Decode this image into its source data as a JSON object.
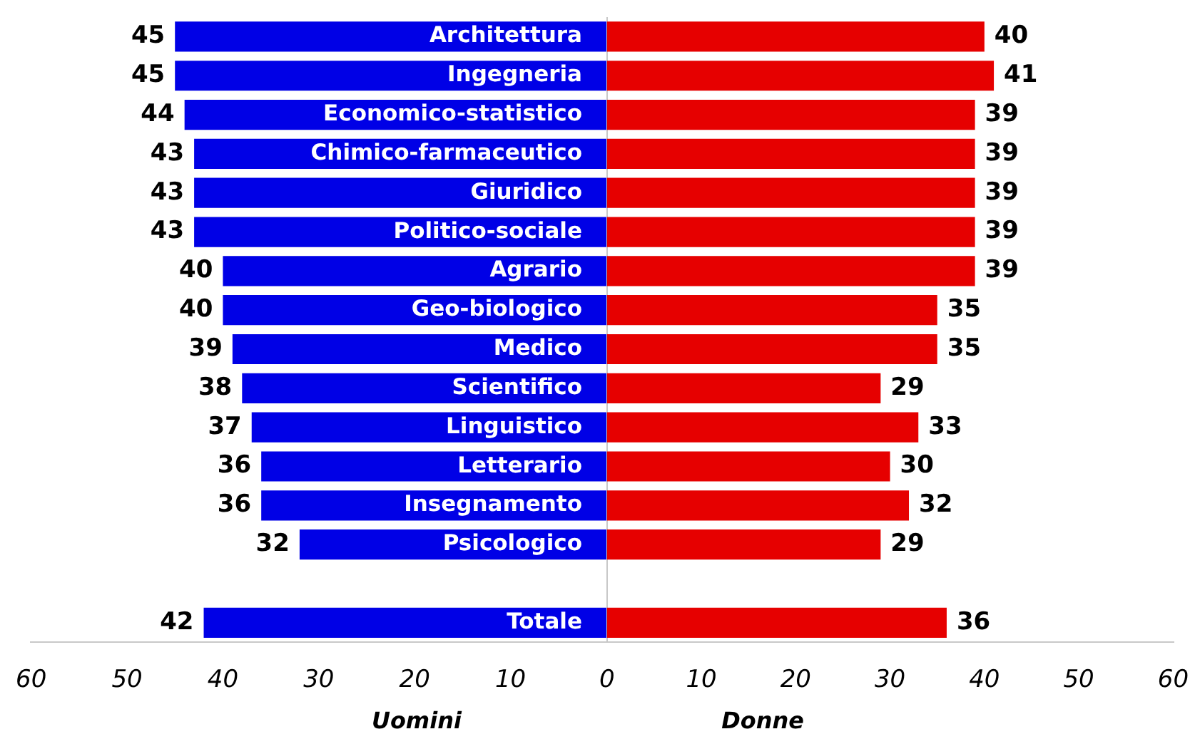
{
  "chart_data": [
    {
      "type": "bar",
      "orientation": "horizontal",
      "xlabel": "Uomini",
      "categories": [
        "Architettura",
        "Ingegneria",
        "Economico-statistico",
        "Chimico-farmaceutico",
        "Giuridico",
        "Politico-sociale",
        "Agrario",
        "Geo-biologico",
        "Medico",
        "Scientifico",
        "Linguistico",
        "Letterario",
        "Insegnamento",
        "Psicologico",
        null,
        "Totale"
      ],
      "series": [
        {
          "color": "#0000e6",
          "values": [
            45,
            45,
            44,
            43,
            43,
            43,
            40,
            40,
            39,
            38,
            37,
            36,
            36,
            32,
            null,
            42
          ]
        }
      ],
      "data_labels": true,
      "xlim": [
        60,
        0
      ],
      "xticks": [
        60,
        50,
        40,
        30,
        20,
        10
      ]
    },
    {
      "type": "bar",
      "orientation": "horizontal",
      "xlabel": "Donne",
      "categories": [
        null,
        null,
        null,
        null,
        null,
        null,
        null,
        null,
        null,
        null,
        null,
        null,
        null,
        null,
        null,
        null
      ],
      "series": [
        {
          "color": "#e60000",
          "values": [
            40,
            41,
            39,
            39,
            39,
            39,
            39,
            35,
            35,
            29,
            33,
            30,
            32,
            29,
            null,
            36
          ]
        }
      ],
      "data_labels": true,
      "xlim": [
        0,
        60
      ],
      "xticks": [
        0,
        10,
        20,
        30,
        40,
        50,
        60
      ]
    }
  ]
}
